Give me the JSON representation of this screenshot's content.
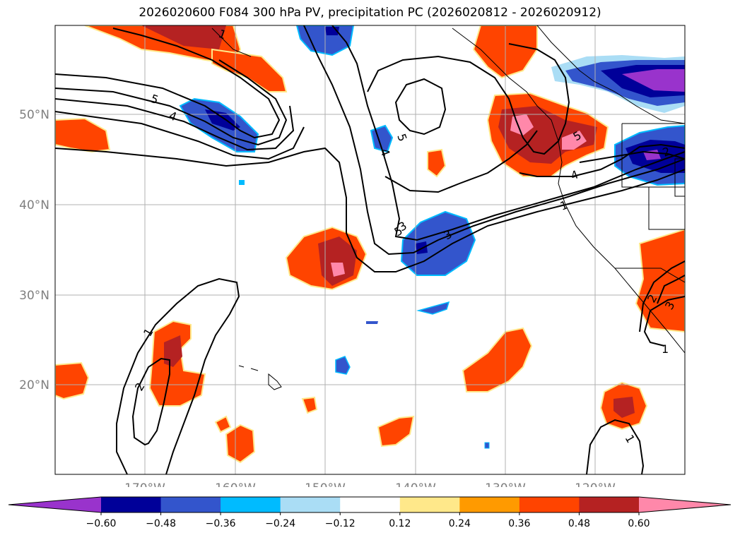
{
  "title": "2026020600 F084 300 hPa PV, precipitation PC (2026020812 - 2026020912)",
  "lat_labels": [
    "50°N",
    "40°N",
    "30°N",
    "20°N"
  ],
  "lon_labels": [
    "170°W",
    "160°W",
    "150°W",
    "140°W",
    "130°W",
    "120°W"
  ],
  "colorbar": {
    "ticks": [
      "−0.60",
      "−0.48",
      "−0.36",
      "−0.24",
      "−0.12",
      "0.12",
      "0.24",
      "0.36",
      "0.48",
      "0.60"
    ],
    "colors": [
      "#9933cc",
      "#000099",
      "#3355cc",
      "#00bbff",
      "#aaddf5",
      "#ffffff",
      "#ffe88a",
      "#ff9a00",
      "#ff4400",
      "#b52222",
      "#ff88aa"
    ]
  },
  "contour_labels": [
    "5",
    "4",
    "1",
    "5",
    "4",
    "5",
    "3",
    "3",
    "5",
    "4",
    "1",
    "2",
    "1",
    "2",
    "1",
    "1",
    "3",
    "2"
  ]
}
